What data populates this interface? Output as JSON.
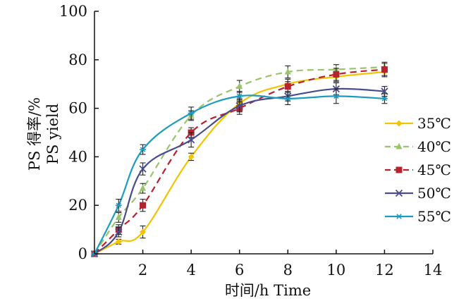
{
  "chart_data": {
    "type": "line",
    "xlabel": "时间/h Time",
    "ylabel_cn": "PS 得率/%",
    "ylabel_en": "PS yield",
    "xlim": [
      0,
      14
    ],
    "ylim": [
      0,
      100
    ],
    "xticks": [
      "2",
      "4",
      "6",
      "8",
      "10",
      "12",
      "14"
    ],
    "yticks": [
      "0",
      "20",
      "40",
      "60",
      "80",
      "100"
    ],
    "grid": false,
    "legend_position": "right",
    "x": [
      0,
      1,
      2,
      4,
      6,
      8,
      10,
      12
    ],
    "series": [
      {
        "name": "35℃",
        "color": "#f2c300",
        "line_style": "solid",
        "marker": "diamond",
        "values": [
          0,
          5,
          9,
          40,
          62,
          70,
          73,
          75
        ],
        "errors": [
          0,
          1,
          2.5,
          1.5,
          2,
          2,
          2,
          2
        ]
      },
      {
        "name": "40℃",
        "color": "#99c46b",
        "line_style": "dashed",
        "marker": "triangle",
        "values": [
          0,
          15,
          27,
          57,
          69,
          75,
          76,
          77
        ],
        "errors": [
          0,
          2,
          2,
          2,
          2.5,
          2.5,
          2,
          2
        ]
      },
      {
        "name": "45℃",
        "color": "#b5232f",
        "line_style": "dashed",
        "marker": "square",
        "values": [
          0,
          10,
          20,
          50,
          60,
          69,
          74,
          76
        ],
        "errors": [
          0,
          2,
          2.5,
          2,
          2.5,
          2,
          2.5,
          2.5
        ]
      },
      {
        "name": "50℃",
        "color": "#4a4c8c",
        "line_style": "solid",
        "marker": "x",
        "values": [
          0,
          9,
          35,
          47,
          61,
          65,
          68,
          67
        ],
        "errors": [
          0,
          2,
          2.5,
          3,
          2.5,
          2,
          2.5,
          2
        ]
      },
      {
        "name": "55℃",
        "color": "#1c9cc0",
        "line_style": "solid",
        "marker": "star",
        "values": [
          0,
          20,
          43,
          58,
          65,
          64,
          65,
          64
        ],
        "errors": [
          0,
          2.5,
          2,
          2.5,
          2,
          2.5,
          3,
          2
        ]
      }
    ]
  }
}
